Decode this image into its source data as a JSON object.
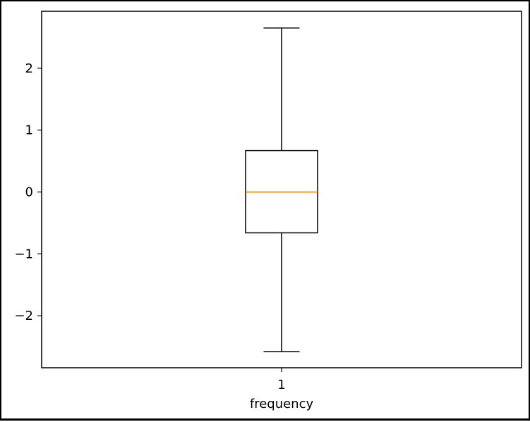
{
  "chart_data": {
    "type": "box",
    "title": "",
    "xlabel": "frequency",
    "ylabel": "",
    "categories": [
      "1"
    ],
    "boxes": [
      {
        "label": "1",
        "whisker_low": -2.58,
        "q1": -0.66,
        "median": 0.0,
        "q3": 0.67,
        "whisker_high": 2.65
      }
    ],
    "yticks": [
      -2,
      -1,
      0,
      1,
      2
    ],
    "ytick_labels": [
      "−2",
      "−1",
      "0",
      "1",
      "2"
    ],
    "ylim": [
      -2.84,
      2.92
    ],
    "grid": false,
    "colors": {
      "box": "#000000",
      "median": "#ff7f0e",
      "whisker": "#000000"
    }
  }
}
